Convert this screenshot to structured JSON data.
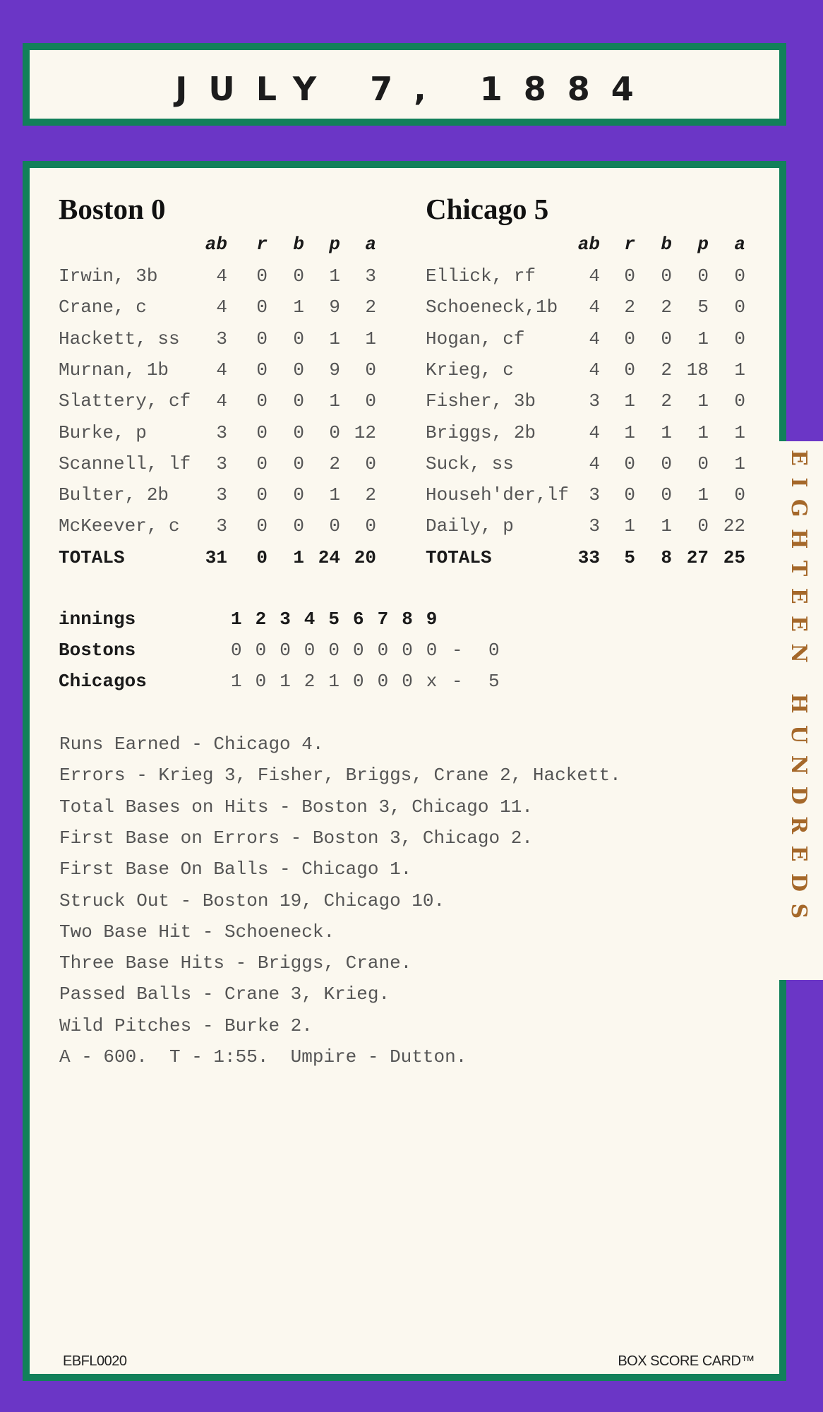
{
  "header": {
    "date": "JULY 7, 1884"
  },
  "side_tab": {
    "label": "EIGHTEEN HUNDREDS"
  },
  "colors": {
    "background": "#6b36c6",
    "border": "#12805a",
    "card": "#fbf8ef",
    "tab_text": "#a5682a"
  },
  "box_score": {
    "columns": [
      "ab",
      "r",
      "b",
      "p",
      "a"
    ],
    "teams": [
      {
        "title": "Boston 0",
        "players": [
          {
            "name": "Irwin, 3b",
            "stats": [
              "4",
              "0",
              "0",
              "1",
              "3"
            ]
          },
          {
            "name": "Crane, c",
            "stats": [
              "4",
              "0",
              "1",
              "9",
              "2"
            ]
          },
          {
            "name": "Hackett, ss",
            "stats": [
              "3",
              "0",
              "0",
              "1",
              "1"
            ]
          },
          {
            "name": "Murnan, 1b",
            "stats": [
              "4",
              "0",
              "0",
              "9",
              "0"
            ]
          },
          {
            "name": "Slattery, cf",
            "stats": [
              "4",
              "0",
              "0",
              "1",
              "0"
            ]
          },
          {
            "name": "Burke, p",
            "stats": [
              "3",
              "0",
              "0",
              "0",
              "12"
            ]
          },
          {
            "name": "Scannell, lf",
            "stats": [
              "3",
              "0",
              "0",
              "2",
              "0"
            ]
          },
          {
            "name": "Bulter, 2b",
            "stats": [
              "3",
              "0",
              "0",
              "1",
              "2"
            ]
          },
          {
            "name": "McKeever, c",
            "stats": [
              "3",
              "0",
              "0",
              "0",
              "0"
            ]
          }
        ],
        "totals": {
          "label": "TOTALS",
          "stats": [
            "31",
            "0",
            "1",
            "24",
            "20"
          ]
        }
      },
      {
        "title": "Chicago 5",
        "players": [
          {
            "name": "Ellick, rf",
            "stats": [
              "4",
              "0",
              "0",
              "0",
              "0"
            ]
          },
          {
            "name": "Schoeneck,1b",
            "stats": [
              "4",
              "2",
              "2",
              "5",
              "0"
            ]
          },
          {
            "name": "Hogan, cf",
            "stats": [
              "4",
              "0",
              "0",
              "1",
              "0"
            ]
          },
          {
            "name": "Krieg, c",
            "stats": [
              "4",
              "0",
              "2",
              "18",
              "1"
            ]
          },
          {
            "name": "Fisher, 3b",
            "stats": [
              "3",
              "1",
              "2",
              "1",
              "0"
            ]
          },
          {
            "name": "Briggs, 2b",
            "stats": [
              "4",
              "1",
              "1",
              "1",
              "1"
            ]
          },
          {
            "name": "Suck, ss",
            "stats": [
              "4",
              "0",
              "0",
              "0",
              "1"
            ]
          },
          {
            "name": "Househ'der,lf",
            "stats": [
              "3",
              "0",
              "0",
              "1",
              "0"
            ]
          },
          {
            "name": "Daily, p",
            "stats": [
              "3",
              "1",
              "1",
              "0",
              "22"
            ]
          }
        ],
        "totals": {
          "label": "TOTALS",
          "stats": [
            "33",
            "5",
            "8",
            "27",
            "25"
          ]
        }
      }
    ]
  },
  "linescore": {
    "label": "innings",
    "innings": [
      "1",
      "2",
      "3",
      "4",
      "5",
      "6",
      "7",
      "8",
      "9"
    ],
    "rows": [
      {
        "team": "Bostons",
        "runs": [
          "0",
          "0",
          "0",
          "0",
          "0",
          "0",
          "0",
          "0",
          "0"
        ],
        "total": "0"
      },
      {
        "team": "Chicagos",
        "runs": [
          "1",
          "0",
          "1",
          "2",
          "1",
          "0",
          "0",
          "0",
          "x"
        ],
        "total": "5"
      }
    ]
  },
  "notes": [
    "Runs Earned - Chicago 4.",
    "Errors - Krieg 3, Fisher, Briggs, Crane 2, Hackett.",
    "Total Bases on Hits - Boston 3, Chicago 11.",
    "First Base on Errors - Boston 3, Chicago 2.",
    "First Base On Balls - Chicago 1.",
    "Struck Out - Boston 19, Chicago 10.",
    "Two Base Hit - Schoeneck.",
    "Three Base Hits - Briggs, Crane.",
    "Passed Balls - Crane 3, Krieg.",
    "Wild Pitches - Burke 2.",
    "A - 600.  T - 1:55.  Umpire - Dutton."
  ],
  "footer": {
    "code": "EBFL0020",
    "brand": "BOX SCORE CARD™"
  }
}
